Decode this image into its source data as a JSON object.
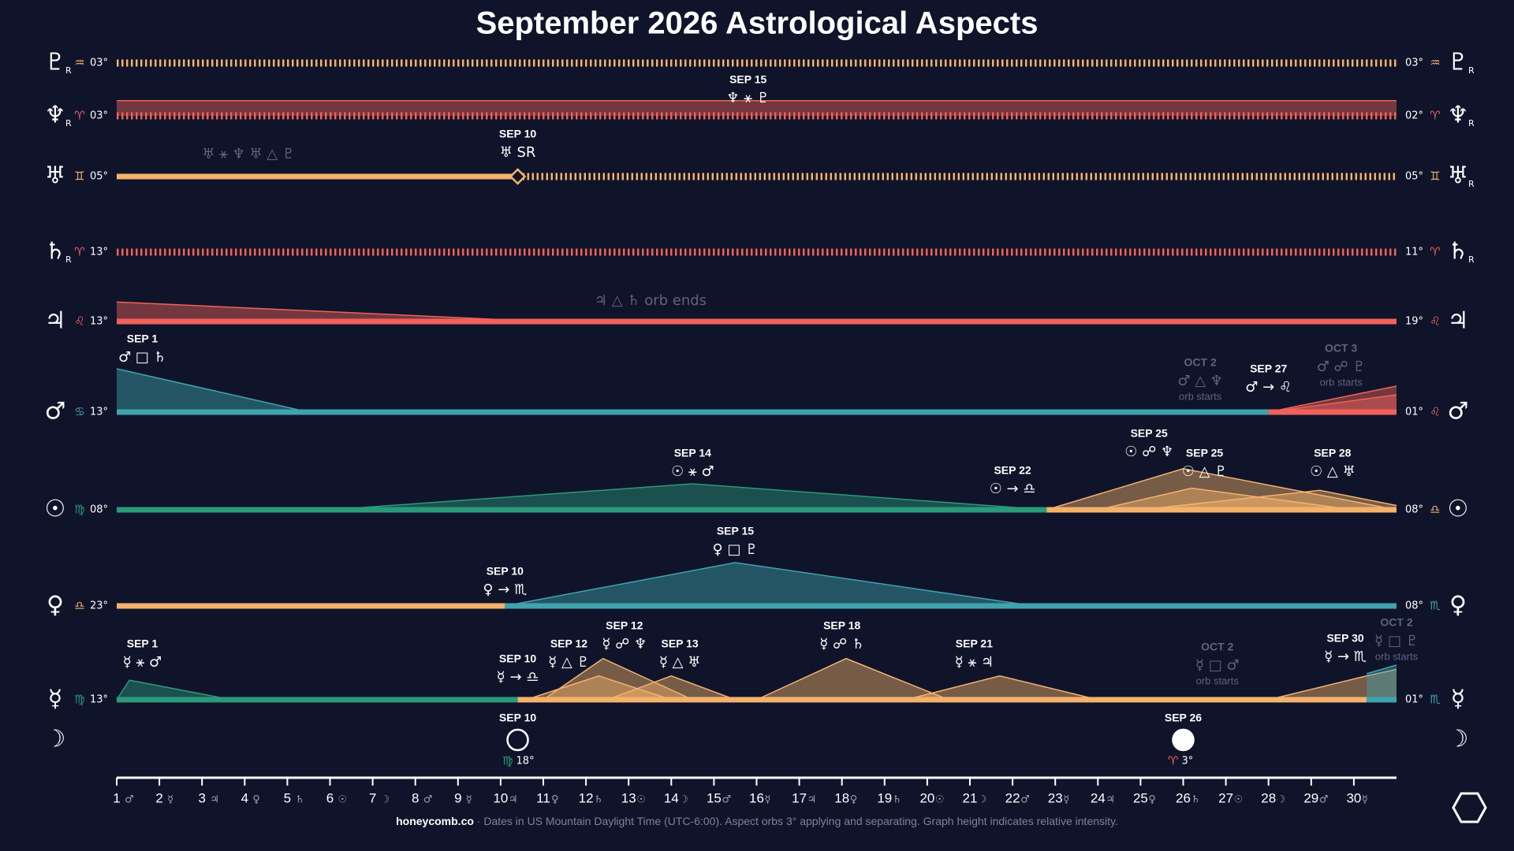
{
  "chart_data": {
    "type": "timeline",
    "title": "September 2026 Astrological Aspects",
    "xlim": [
      1,
      31
    ],
    "xticks": [
      1,
      2,
      3,
      4,
      5,
      6,
      7,
      8,
      9,
      10,
      11,
      12,
      13,
      14,
      15,
      16,
      17,
      18,
      19,
      20,
      21,
      22,
      23,
      24,
      25,
      26,
      27,
      28,
      29,
      30
    ],
    "xtick_symbols": [
      "♂",
      "☿",
      "♃",
      "♀",
      "♄",
      "☉",
      "☽",
      "♂",
      "☿",
      "♃",
      "♀",
      "♄",
      "☉",
      "☽",
      "♂",
      "☿",
      "♃",
      "♀",
      "♄",
      "☉",
      "☽",
      "♂",
      "☿",
      "♃",
      "♀",
      "♄",
      "☉",
      "☽",
      "♂",
      "☿"
    ],
    "ylim": [
      0,
      1
    ],
    "rows": [
      {
        "planet": "♇",
        "planet_sub": "R",
        "left": {
          "sign": "♒",
          "degree": "03°",
          "sign_color": "#f4b26b"
        },
        "right": {
          "sign": "♒",
          "degree": "03°",
          "sign_color": "#f4b26b"
        },
        "right_sub": "R",
        "segments": [
          {
            "from": 1,
            "to": 31,
            "color": "#f4b26b",
            "style": "dotted"
          }
        ],
        "series": [],
        "events": []
      },
      {
        "planet": "♆",
        "planet_sub": "R",
        "left": {
          "sign": "♈",
          "degree": "03°",
          "sign_color": "#f0625a"
        },
        "right": {
          "sign": "♈",
          "degree": "02°",
          "sign_color": "#f0625a"
        },
        "right_sub": "R",
        "segments": [
          {
            "from": 1,
            "to": 31,
            "color": "#f0625a",
            "style": "dotted"
          }
        ],
        "series": [
          {
            "color": "#f0625a",
            "x": [
              1,
              31
            ],
            "values": [
              0.35,
              0.35
            ]
          }
        ],
        "events": [
          {
            "x": 15.8,
            "date": "SEP 15",
            "glyphs": "♆ ⚹ ♇"
          }
        ]
      },
      {
        "planet": "♅",
        "left": {
          "sign": "♊",
          "degree": "05°",
          "sign_color": "#f4b26b"
        },
        "right": {
          "sign": "♊",
          "degree": "05°",
          "sign_color": "#f4b26b"
        },
        "right_sub": "R",
        "segments": [
          {
            "from": 1,
            "to": 10.4,
            "color": "#f4b26b",
            "style": "solid"
          },
          {
            "from": 10.4,
            "to": 31,
            "color": "#f4b26b",
            "style": "dotted"
          }
        ],
        "station": 10.4,
        "series": [],
        "events": [
          {
            "x": 10.4,
            "date": "SEP 10",
            "glyphs": "♅ SR"
          },
          {
            "x": 3.0,
            "glyphs": "♅ ⚹ ♆  ♅ △ ♇",
            "faded": true
          }
        ]
      },
      {
        "planet": "♄",
        "planet_sub": "R",
        "left": {
          "sign": "♈",
          "degree": "13°",
          "sign_color": "#f0625a"
        },
        "right": {
          "sign": "♈",
          "degree": "11°",
          "sign_color": "#f0625a"
        },
        "right_sub": "R",
        "segments": [
          {
            "from": 1,
            "to": 31,
            "color": "#f0625a",
            "style": "dotted"
          }
        ],
        "series": [],
        "events": []
      },
      {
        "planet": "♃",
        "left": {
          "sign": "♌",
          "degree": "13°",
          "sign_color": "#f0625a"
        },
        "right": {
          "sign": "♌",
          "degree": "19°",
          "sign_color": "#f0625a"
        },
        "segments": [
          {
            "from": 1,
            "to": 31,
            "color": "#f0625a",
            "style": "solid"
          }
        ],
        "series": [
          {
            "color": "#f0625a",
            "x": [
              1,
              11
            ],
            "values": [
              0.45,
              0
            ]
          }
        ],
        "events": [
          {
            "x": 12.2,
            "glyphs": "♃ △ ♄  orb ends",
            "faded": true
          }
        ]
      },
      {
        "planet": "♂",
        "left": {
          "sign": "♋",
          "degree": "13°",
          "sign_color": "#3fa3ae"
        },
        "right": {
          "sign": "♌",
          "degree": "01°",
          "sign_color": "#f0625a"
        },
        "segments": [
          {
            "from": 1,
            "to": 28,
            "color": "#3fa3ae",
            "style": "solid"
          },
          {
            "from": 28,
            "to": 31,
            "color": "#f0625a",
            "style": "solid"
          }
        ],
        "series": [
          {
            "color": "#3fa3ae",
            "x": [
              1,
              5.5
            ],
            "values": [
              1,
              0
            ]
          },
          {
            "color": "#f0625a",
            "x": [
              28,
              31
            ],
            "values": [
              0,
              0.6
            ]
          },
          {
            "color": "#f0625a",
            "x": [
              28,
              31
            ],
            "values": [
              0,
              0.4
            ]
          }
        ],
        "events": [
          {
            "x": 1.6,
            "date": "SEP 1",
            "glyphs": "♂ □ ♄"
          },
          {
            "x": 26.4,
            "date": "OCT 2",
            "glyphs": "♂ △ ♆",
            "note": "orb starts",
            "faded": true
          },
          {
            "x": 28.0,
            "date": "SEP 27",
            "glyphs": "♂ → ♌"
          },
          {
            "x": 29.7,
            "date": "OCT 3",
            "glyphs": "♂ ☍ ♇",
            "note": "orb starts",
            "faded": true
          }
        ]
      },
      {
        "planet": "☉",
        "left": {
          "sign": "♍",
          "degree": "08°",
          "sign_color": "#2a9a7a"
        },
        "right": {
          "sign": "♎",
          "degree": "08°",
          "sign_color": "#f4b26b"
        },
        "segments": [
          {
            "from": 1,
            "to": 22.8,
            "color": "#2a9a7a",
            "style": "solid"
          },
          {
            "from": 22.8,
            "to": 31,
            "color": "#f4b26b",
            "style": "solid"
          }
        ],
        "series": [
          {
            "color": "#2a9a7a",
            "x": [
              6,
              14.5,
              22.8
            ],
            "values": [
              0,
              0.6,
              0
            ]
          },
          {
            "color": "#f4b26b",
            "x": [
              22.8,
              26,
              31
            ],
            "values": [
              0,
              0.95,
              0
            ]
          },
          {
            "color": "#f4b26b",
            "x": [
              24,
              26.2,
              30
            ],
            "values": [
              0,
              0.5,
              0
            ]
          },
          {
            "color": "#f4b26b",
            "x": [
              25,
              29.2,
              31
            ],
            "values": [
              0,
              0.45,
              0.1
            ]
          }
        ],
        "events": [
          {
            "x": 14.5,
            "date": "SEP 14",
            "glyphs": "☉ ⚹ ♂"
          },
          {
            "x": 22.0,
            "date": "SEP 22",
            "glyphs": "☉ → ♎"
          },
          {
            "x": 25.2,
            "date": "SEP 25",
            "glyphs": "☉ ☍ ♆"
          },
          {
            "x": 26.5,
            "date": "SEP 25",
            "glyphs": "☉ △ ♇"
          },
          {
            "x": 29.5,
            "date": "SEP 28",
            "glyphs": "☉ △ ♅"
          }
        ]
      },
      {
        "planet": "♀",
        "left": {
          "sign": "♎",
          "degree": "23°",
          "sign_color": "#f4b26b"
        },
        "right": {
          "sign": "♏",
          "degree": "08°",
          "sign_color": "#3fa3ae"
        },
        "segments": [
          {
            "from": 1,
            "to": 10.1,
            "color": "#f4b26b",
            "style": "solid"
          },
          {
            "from": 10.1,
            "to": 31,
            "color": "#3fa3ae",
            "style": "solid"
          }
        ],
        "series": [
          {
            "color": "#3fa3ae",
            "x": [
              10.1,
              15.5,
              22.5
            ],
            "values": [
              0,
              1,
              0
            ]
          }
        ],
        "events": [
          {
            "x": 10.1,
            "date": "SEP 10",
            "glyphs": "♀ → ♏"
          },
          {
            "x": 15.5,
            "date": "SEP 15",
            "glyphs": "♀ □ ♇"
          }
        ]
      },
      {
        "planet": "☿",
        "left": {
          "sign": "♍",
          "degree": "13°",
          "sign_color": "#2a9a7a"
        },
        "right": {
          "sign": "♏",
          "degree": "01°",
          "sign_color": "#3fa3ae"
        },
        "segments": [
          {
            "from": 1,
            "to": 10.4,
            "color": "#2a9a7a",
            "style": "solid"
          },
          {
            "from": 10.4,
            "to": 30.3,
            "color": "#f4b26b",
            "style": "solid"
          },
          {
            "from": 30.3,
            "to": 31,
            "color": "#3fa3ae",
            "style": "solid"
          }
        ],
        "series": [
          {
            "color": "#2a9a7a",
            "x": [
              1,
              1.3,
              3.7
            ],
            "values": [
              0,
              0.45,
              0
            ]
          },
          {
            "color": "#f4b26b",
            "x": [
              11,
              12.4,
              14.5
            ],
            "values": [
              0,
              0.95,
              0
            ]
          },
          {
            "color": "#f4b26b",
            "x": [
              10.6,
              12.3,
              14
            ],
            "values": [
              0,
              0.55,
              0
            ]
          },
          {
            "color": "#f4b26b",
            "x": [
              12.5,
              14,
              15.5
            ],
            "values": [
              0,
              0.55,
              0
            ]
          },
          {
            "color": "#f4b26b",
            "x": [
              16,
              18.1,
              20.5
            ],
            "values": [
              0,
              0.95,
              0
            ]
          },
          {
            "color": "#f4b26b",
            "x": [
              19.5,
              21.7,
              24
            ],
            "values": [
              0,
              0.55,
              0
            ]
          },
          {
            "color": "#f4b26b",
            "x": [
              28,
              30.3,
              31
            ],
            "values": [
              0,
              0.55,
              0.7
            ]
          },
          {
            "color": "#3fa3ae",
            "x": [
              30.3,
              31
            ],
            "values": [
              0.6,
              0.8
            ]
          }
        ],
        "events": [
          {
            "x": 1.6,
            "date": "SEP 1",
            "glyphs": "☿ ⚹ ♂"
          },
          {
            "x": 10.4,
            "date": "SEP 10",
            "glyphs": "☿ → ♎"
          },
          {
            "x": 11.6,
            "date": "SEP 12",
            "glyphs": "☿ △ ♇"
          },
          {
            "x": 12.9,
            "date": "SEP 12",
            "glyphs": "☿ ☍ ♆"
          },
          {
            "x": 14.2,
            "date": "SEP 13",
            "glyphs": "☿ △ ♅"
          },
          {
            "x": 18.0,
            "date": "SEP 18",
            "glyphs": "☿ ☍ ♄"
          },
          {
            "x": 21.1,
            "date": "SEP 21",
            "glyphs": "☿ ⚹ ♃"
          },
          {
            "x": 26.8,
            "date": "OCT 2",
            "glyphs": "☿ □ ♂",
            "note": "orb starts",
            "faded": true
          },
          {
            "x": 29.8,
            "date": "SEP 30",
            "glyphs": "☿ → ♏"
          },
          {
            "x": 31.0,
            "date": "OCT 2",
            "glyphs": "☿ □ ♇",
            "note": "orb starts",
            "faded": true
          }
        ]
      }
    ],
    "moon": {
      "planet": "☽",
      "phases": [
        {
          "x": 10.4,
          "date": "SEP 10",
          "phase": "new",
          "sign": "♍",
          "sign_color": "#2a9a7a",
          "degree": "18°"
        },
        {
          "x": 26.0,
          "date": "SEP 26",
          "phase": "full",
          "sign": "♈",
          "sign_color": "#f0625a",
          "degree": "3°"
        }
      ]
    },
    "footer": {
      "brand": "honeycomb.co",
      "note": " · Dates in US Mountain Daylight Time (UTC-6:00). Aspect orbs 3° applying and separating. Graph height indicates relative intensity."
    }
  }
}
